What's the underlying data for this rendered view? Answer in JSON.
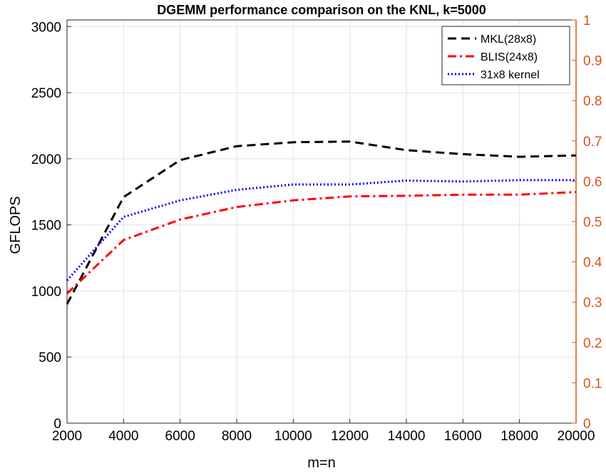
{
  "chart_data": {
    "type": "line",
    "title": "DGEMM performance comparison on the KNL, k=5000",
    "xlabel": "m=n",
    "ylabel": "GFLOPS",
    "x": [
      2000,
      4000,
      6000,
      8000,
      10000,
      12000,
      14000,
      16000,
      18000,
      20000
    ],
    "xlim": [
      2000,
      20000
    ],
    "ylim": [
      0,
      3050
    ],
    "y2lim": [
      0,
      1
    ],
    "grid": true,
    "legend_position": "top-right",
    "x_ticks": [
      "2000",
      "4000",
      "6000",
      "8000",
      "10000",
      "12000",
      "14000",
      "16000",
      "18000",
      "20000"
    ],
    "y_ticks": [
      "0",
      "500",
      "1000",
      "1500",
      "2000",
      "2500",
      "3000"
    ],
    "y2_ticks": [
      "0",
      "0.1",
      "0.2",
      "0.3",
      "0.4",
      "0.5",
      "0.6",
      "0.7",
      "0.8",
      "0.9",
      "1"
    ],
    "y2_color": "#d95319",
    "series": [
      {
        "name": "MKL(28x8)",
        "color": "#000000",
        "dash": "dashed",
        "values": [
          900,
          1710,
          1990,
          2095,
          2125,
          2130,
          2065,
          2035,
          2015,
          2025
        ]
      },
      {
        "name": "BLIS(24x8)",
        "color": "#ff0000",
        "dash": "dashdot",
        "values": [
          980,
          1385,
          1540,
          1635,
          1685,
          1715,
          1720,
          1728,
          1728,
          1748
        ]
      },
      {
        "name": "31x8 kernel",
        "color": "#0000ff",
        "dash": "dotted",
        "values": [
          1080,
          1560,
          1685,
          1765,
          1805,
          1805,
          1835,
          1828,
          1838,
          1838
        ]
      }
    ]
  }
}
